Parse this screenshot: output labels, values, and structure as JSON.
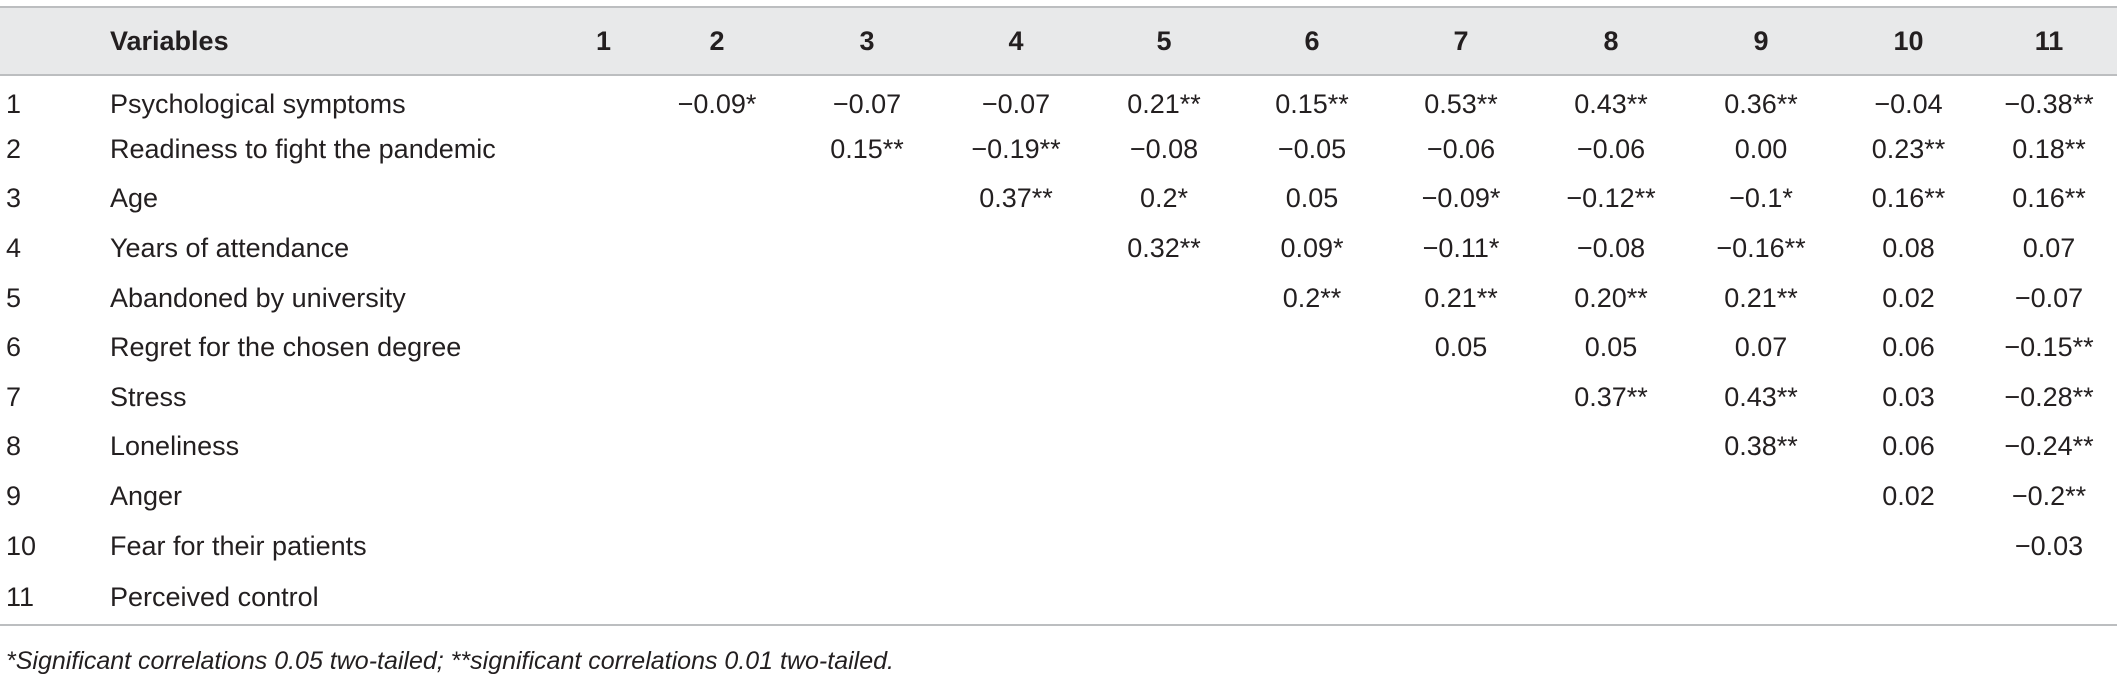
{
  "table": {
    "header": {
      "variables_label": "Variables",
      "columns": [
        "1",
        "2",
        "3",
        "4",
        "5",
        "6",
        "7",
        "8",
        "9",
        "10",
        "11"
      ]
    },
    "rows": [
      {
        "num": "1",
        "name": "Psychological symptoms",
        "values": [
          "",
          "−0.09*",
          "−0.07",
          "−0.07",
          "0.21**",
          "0.15**",
          "0.53**",
          "0.43**",
          "0.36**",
          "−0.04",
          "−0.38**"
        ]
      },
      {
        "num": "2",
        "name": "Readiness to fight the pandemic",
        "values": [
          "",
          "",
          "0.15**",
          "−0.19**",
          "−0.08",
          "−0.05",
          "−0.06",
          "−0.06",
          "0.00",
          "0.23**",
          "0.18**"
        ]
      },
      {
        "num": "3",
        "name": "Age",
        "values": [
          "",
          "",
          "",
          "0.37**",
          "0.2*",
          "0.05",
          "−0.09*",
          "−0.12**",
          "−0.1*",
          "0.16**",
          "0.16**"
        ]
      },
      {
        "num": "4",
        "name": "Years of attendance",
        "values": [
          "",
          "",
          "",
          "",
          "0.32**",
          "0.09*",
          "−0.11*",
          "−0.08",
          "−0.16**",
          "0.08",
          "0.07"
        ]
      },
      {
        "num": "5",
        "name": "Abandoned by university",
        "values": [
          "",
          "",
          "",
          "",
          "",
          "0.2**",
          "0.21**",
          "0.20**",
          "0.21**",
          "0.02",
          "−0.07"
        ]
      },
      {
        "num": "6",
        "name": "Regret for the chosen degree",
        "values": [
          "",
          "",
          "",
          "",
          "",
          "",
          "0.05",
          "0.05",
          "0.07",
          "0.06",
          "−0.15**"
        ]
      },
      {
        "num": "7",
        "name": "Stress",
        "values": [
          "",
          "",
          "",
          "",
          "",
          "",
          "",
          "0.37**",
          "0.43**",
          "0.03",
          "−0.28**"
        ]
      },
      {
        "num": "8",
        "name": "Loneliness",
        "values": [
          "",
          "",
          "",
          "",
          "",
          "",
          "",
          "",
          "0.38**",
          "0.06",
          "−0.24**"
        ]
      },
      {
        "num": "9",
        "name": "Anger",
        "values": [
          "",
          "",
          "",
          "",
          "",
          "",
          "",
          "",
          "",
          "0.02",
          "−0.2**"
        ]
      },
      {
        "num": "10",
        "name": "Fear for their patients",
        "values": [
          "",
          "",
          "",
          "",
          "",
          "",
          "",
          "",
          "",
          "",
          "−0.03"
        ]
      },
      {
        "num": "11",
        "name": "Perceived control",
        "values": [
          "",
          "",
          "",
          "",
          "",
          "",
          "",
          "",
          "",
          "",
          ""
        ]
      }
    ]
  },
  "footnote": "*Significant correlations 0.05 two-tailed; **significant correlations 0.01 two-tailed.",
  "colors": {
    "header_background": "#e8e9ea",
    "rule": "#bcbec0",
    "text": "#231f20"
  }
}
